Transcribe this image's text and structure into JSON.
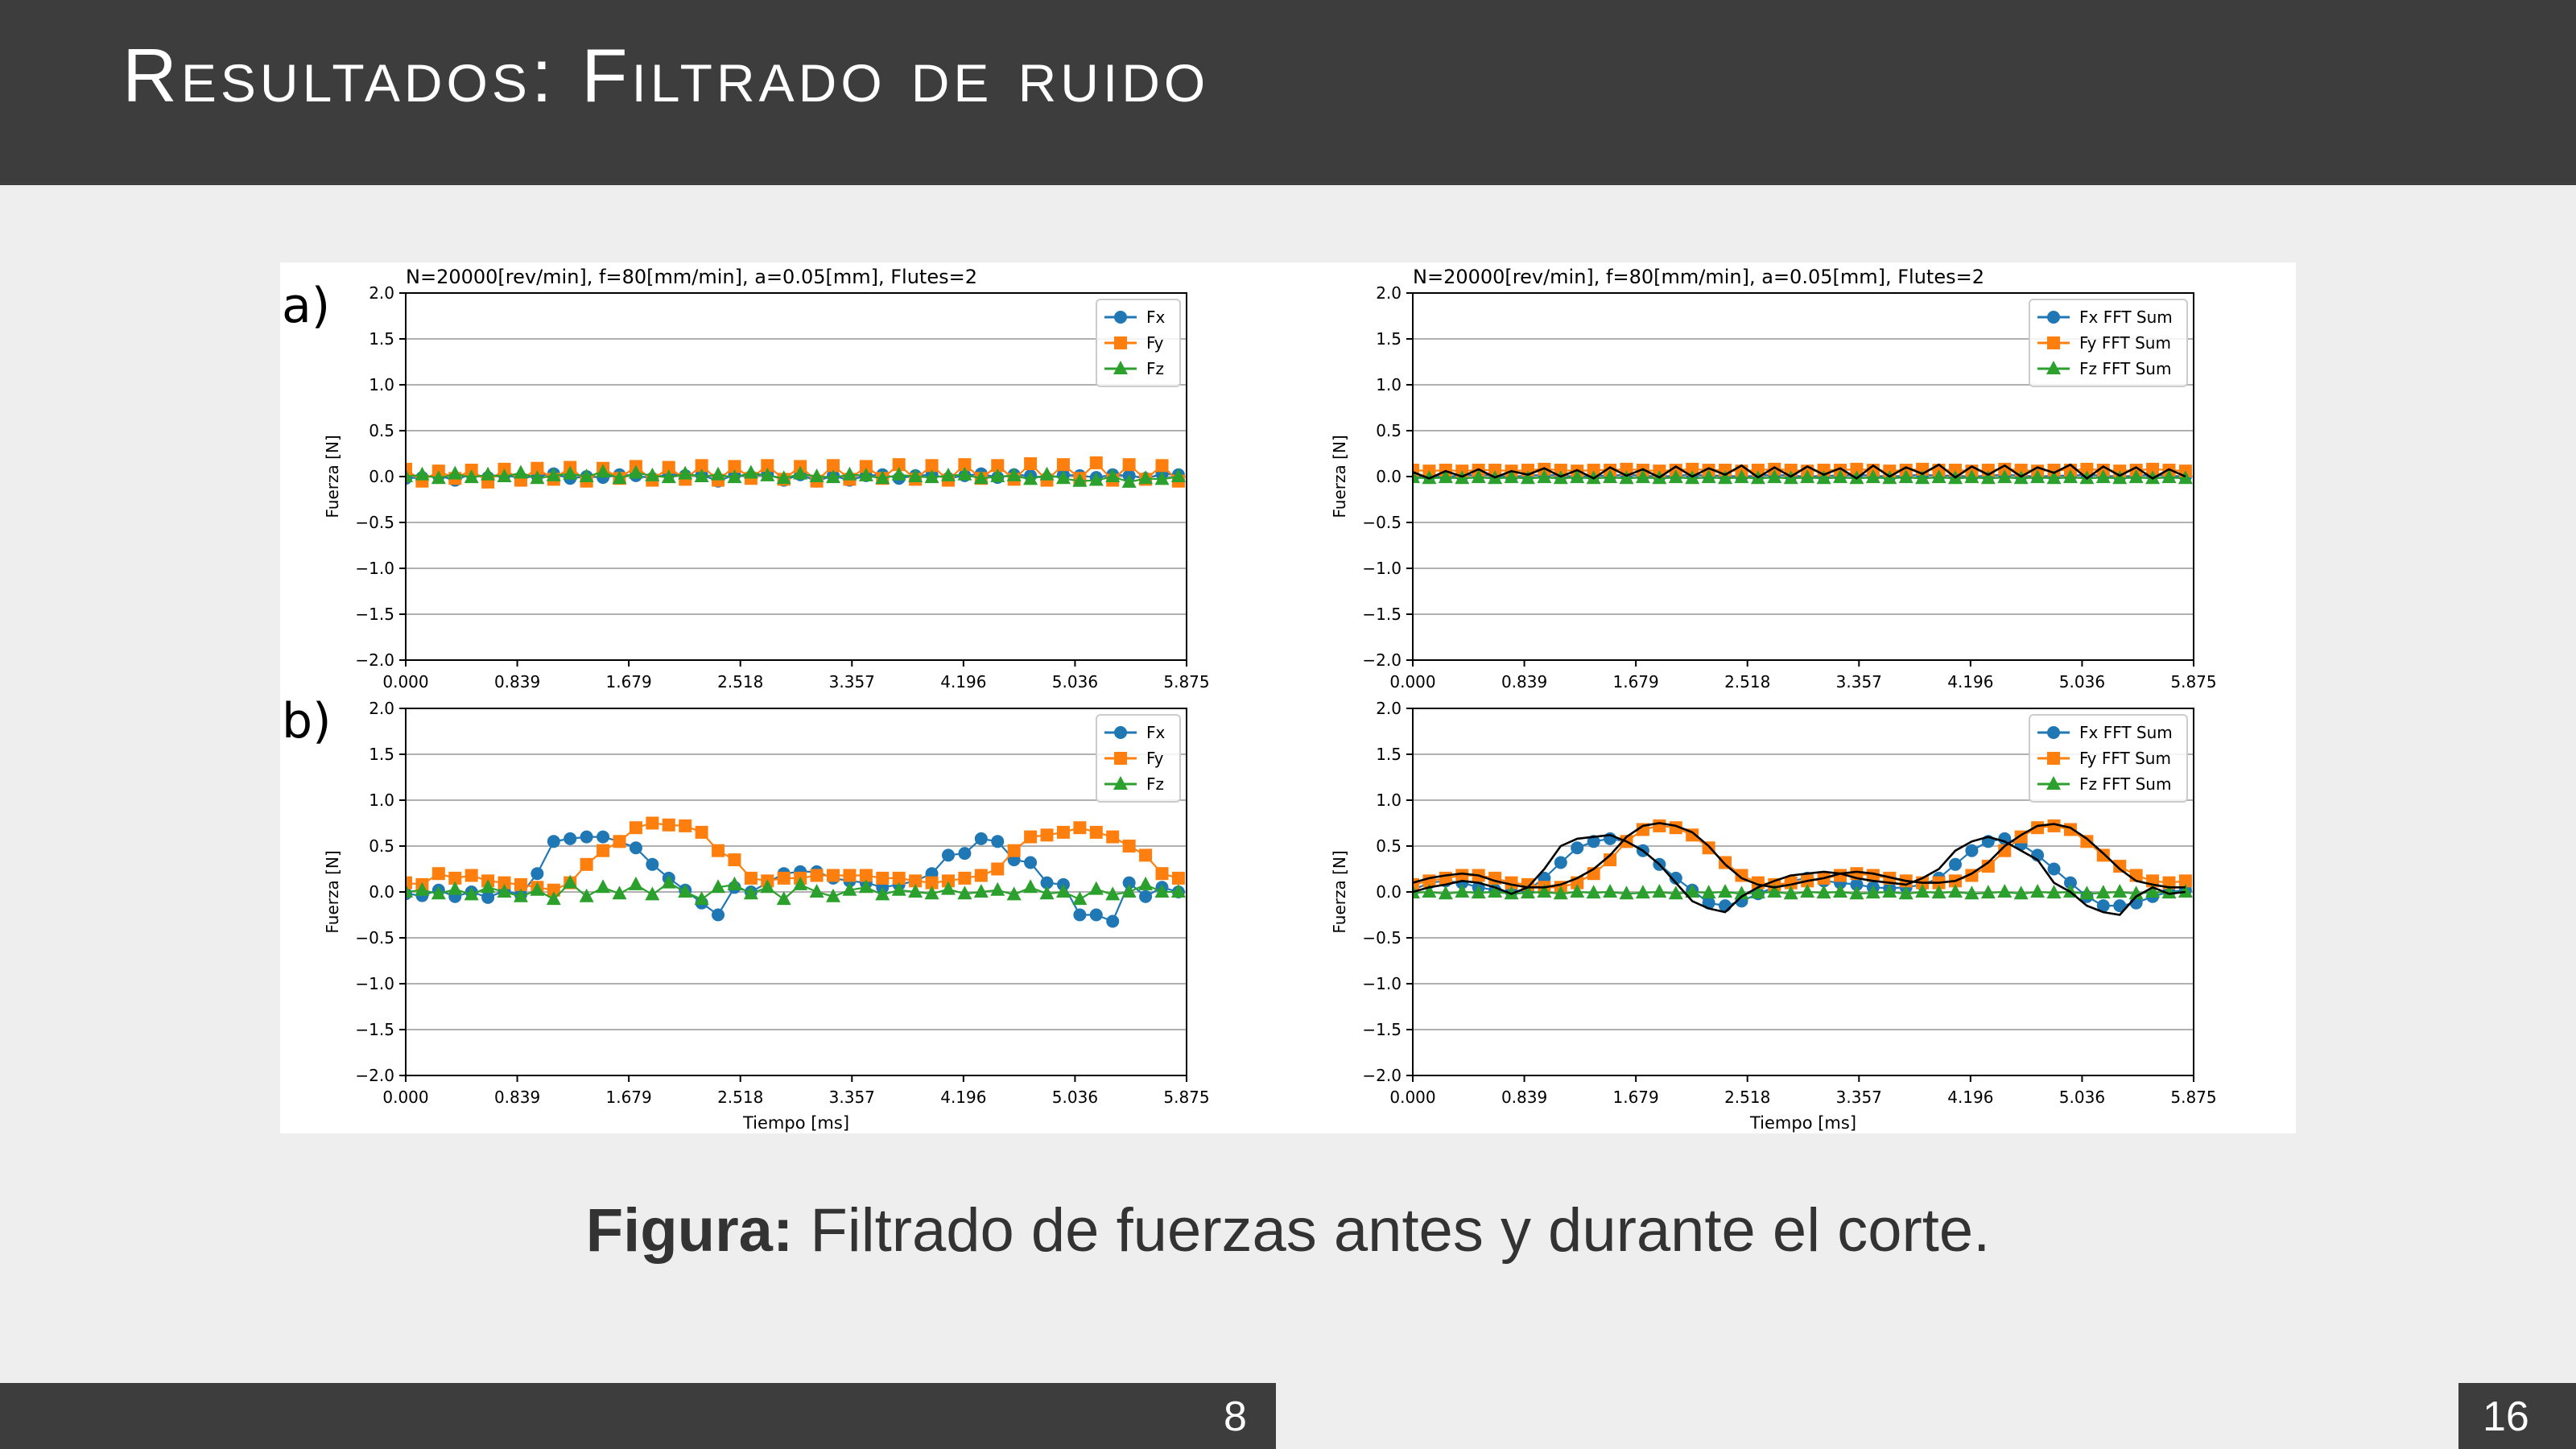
{
  "slide": {
    "title": "Resultados: Filtrado de ruido",
    "caption_bold": "Figura:",
    "caption_text": " Filtrado de fuerzas antes y durante el corte.",
    "page_current": "8",
    "page_total": "16"
  },
  "colors": {
    "header_bg": "#3d3d3d",
    "slide_bg": "#eeeeee",
    "Fx": "#1f77b4",
    "Fy": "#ff7f0e",
    "Fz": "#2ca02c",
    "filtered": "#000000"
  },
  "panel_labels": [
    "a)",
    "b)"
  ],
  "chart_data": [
    {
      "id": "a-left",
      "type": "line",
      "title": "N=20000[rev/min], f=80[mm/min], a=0.05[mm], Flutes=2",
      "xlabel": "",
      "ylabel": "Fuerza [N]",
      "xlim": [
        0,
        5.875
      ],
      "ylim": [
        -2.0,
        2.0
      ],
      "xticks": [
        "0.000",
        "0.839",
        "1.679",
        "2.518",
        "3.357",
        "4.196",
        "5.036",
        "5.875"
      ],
      "yticks": [
        "2.0",
        "1.5",
        "1.0",
        "0.5",
        "0.0",
        "−0.5",
        "−1.0",
        "−1.5",
        "−2.0"
      ],
      "grid": "y",
      "legend": "top-right",
      "x_start": 0,
      "x_step": 0.1237,
      "series": [
        {
          "name": "Fx",
          "marker": "circle",
          "color": "#1f77b4",
          "values": [
            -0.02,
            -0.01,
            0.01,
            -0.04,
            0.03,
            -0.01,
            0.02,
            -0.02,
            0.01,
            0.03,
            -0.02,
            0.0,
            -0.01,
            0.02,
            0.01,
            -0.02,
            0.03,
            0.01,
            0.02,
            -0.05,
            0.02,
            0.0,
            0.03,
            -0.04,
            0.02,
            -0.05,
            0.01,
            -0.04,
            0.01,
            0.02,
            -0.02,
            0.01,
            0.02,
            -0.02,
            0.01,
            0.03,
            -0.01,
            0.02,
            0.01,
            -0.02,
            0.02,
            0.01,
            -0.01,
            0.02,
            0.01,
            -0.02,
            0.03,
            0.02
          ]
        },
        {
          "name": "Fy",
          "marker": "square",
          "color": "#ff7f0e",
          "values": [
            0.08,
            -0.05,
            0.06,
            -0.02,
            0.07,
            -0.06,
            0.08,
            -0.04,
            0.09,
            -0.03,
            0.1,
            -0.05,
            0.09,
            -0.02,
            0.11,
            -0.04,
            0.1,
            -0.03,
            0.12,
            -0.04,
            0.11,
            -0.02,
            0.12,
            -0.03,
            0.11,
            -0.05,
            0.12,
            -0.03,
            0.11,
            -0.02,
            0.13,
            -0.03,
            0.12,
            -0.04,
            0.13,
            -0.02,
            0.12,
            -0.03,
            0.14,
            -0.04,
            0.13,
            -0.02,
            0.15,
            -0.04,
            0.13,
            -0.03,
            0.12,
            -0.05
          ]
        },
        {
          "name": "Fz",
          "marker": "triangle",
          "color": "#2ca02c",
          "values": [
            0.0,
            0.02,
            -0.02,
            0.03,
            -0.01,
            0.02,
            0.0,
            0.04,
            -0.02,
            0.01,
            0.03,
            0.0,
            0.05,
            -0.02,
            0.04,
            0.01,
            -0.01,
            0.03,
            0.0,
            0.02,
            -0.01,
            0.04,
            0.01,
            -0.02,
            0.03,
            0.0,
            -0.01,
            0.02,
            0.01,
            -0.02,
            0.02,
            0.0,
            -0.01,
            0.01,
            0.02,
            -0.02,
            0.0,
            0.01,
            -0.03,
            0.02,
            -0.02,
            -0.05,
            -0.04,
            0.0,
            -0.06,
            -0.02,
            -0.03,
            0.0
          ]
        }
      ]
    },
    {
      "id": "a-right",
      "type": "line",
      "title": "N=20000[rev/min], f=80[mm/min], a=0.05[mm], Flutes=2",
      "xlabel": "",
      "ylabel": "Fuerza [N]",
      "xlim": [
        0,
        5.875
      ],
      "ylim": [
        -2.0,
        2.0
      ],
      "xticks": [
        "0.000",
        "0.839",
        "1.679",
        "2.518",
        "3.357",
        "4.196",
        "5.036",
        "5.875"
      ],
      "yticks": [
        "2.0",
        "1.5",
        "1.0",
        "0.5",
        "0.0",
        "−0.5",
        "−1.0",
        "−1.5",
        "−2.0"
      ],
      "grid": "y",
      "legend": "top-right",
      "x_start": 0,
      "x_step": 0.1237,
      "series": [
        {
          "name": "Fx FFT Sum",
          "marker": "circle",
          "color": "#1f77b4",
          "values": [
            0.0,
            0.01,
            0.0,
            0.01,
            0.02,
            0.01,
            0.0,
            0.01,
            0.02,
            0.01,
            0.0,
            0.01,
            0.01,
            0.02,
            0.01,
            0.0,
            0.01,
            0.02,
            0.01,
            0.01,
            0.0,
            0.01,
            0.02,
            0.01,
            0.0,
            0.01,
            0.01,
            0.02,
            0.01,
            0.0,
            0.01,
            0.02,
            0.01,
            0.01,
            0.0,
            0.01,
            0.02,
            0.01,
            0.0,
            0.01,
            0.01,
            0.02,
            0.01,
            0.0,
            0.01,
            0.02,
            0.01,
            0.0
          ]
        },
        {
          "name": "Fy FFT Sum",
          "marker": "square",
          "color": "#ff7f0e",
          "values": [
            0.07,
            0.06,
            0.07,
            0.06,
            0.07,
            0.07,
            0.06,
            0.07,
            0.08,
            0.07,
            0.06,
            0.07,
            0.07,
            0.08,
            0.07,
            0.06,
            0.07,
            0.08,
            0.07,
            0.07,
            0.06,
            0.07,
            0.08,
            0.07,
            0.06,
            0.07,
            0.07,
            0.08,
            0.07,
            0.06,
            0.07,
            0.08,
            0.07,
            0.07,
            0.06,
            0.07,
            0.08,
            0.07,
            0.06,
            0.07,
            0.07,
            0.08,
            0.07,
            0.06,
            0.07,
            0.08,
            0.07,
            0.06
          ]
        },
        {
          "name": "Fz FFT Sum",
          "marker": "triangle",
          "color": "#2ca02c",
          "values": [
            -0.01,
            -0.02,
            -0.01,
            -0.02,
            -0.01,
            -0.02,
            -0.01,
            -0.02,
            -0.01,
            -0.02,
            -0.01,
            -0.02,
            -0.01,
            -0.02,
            -0.01,
            -0.02,
            -0.01,
            -0.02,
            -0.01,
            -0.02,
            -0.01,
            -0.02,
            -0.01,
            -0.02,
            -0.01,
            -0.02,
            -0.01,
            -0.02,
            -0.01,
            -0.02,
            -0.01,
            -0.02,
            -0.01,
            -0.02,
            -0.01,
            -0.02,
            -0.01,
            -0.02,
            -0.01,
            -0.02,
            -0.01,
            -0.02,
            -0.01,
            -0.02,
            -0.01,
            -0.02,
            -0.01,
            -0.02
          ]
        },
        {
          "name": "",
          "marker": "none",
          "color": "#000000",
          "values": [
            0.05,
            -0.02,
            0.06,
            0.0,
            0.08,
            -0.01,
            0.06,
            0.02,
            0.09,
            0.0,
            0.07,
            -0.02,
            0.1,
            0.01,
            0.08,
            -0.01,
            0.11,
            0.0,
            0.09,
            0.02,
            0.12,
            -0.01,
            0.1,
            0.0,
            0.11,
            0.02,
            0.09,
            -0.02,
            0.12,
            0.0,
            0.1,
            0.03,
            0.13,
            -0.01,
            0.11,
            0.02,
            0.12,
            0.0,
            0.1,
            0.04,
            0.13,
            -0.02,
            0.11,
            0.01,
            0.1,
            -0.02,
            0.08,
            0.0
          ]
        }
      ]
    },
    {
      "id": "b-left",
      "type": "line",
      "title": "",
      "xlabel": "Tiempo [ms]",
      "ylabel": "Fuerza [N]",
      "xlim": [
        0,
        5.875
      ],
      "ylim": [
        -2.0,
        2.0
      ],
      "xticks": [
        "0.000",
        "0.839",
        "1.679",
        "2.518",
        "3.357",
        "4.196",
        "5.036",
        "5.875"
      ],
      "yticks": [
        "2.0",
        "1.5",
        "1.0",
        "0.5",
        "0.0",
        "−0.5",
        "−1.0",
        "−1.5",
        "−2.0"
      ],
      "grid": "y",
      "legend": "top-right",
      "x_start": 0,
      "x_step": 0.1237,
      "series": [
        {
          "name": "Fx",
          "marker": "circle",
          "color": "#1f77b4",
          "values": [
            -0.02,
            -0.04,
            0.02,
            -0.05,
            0.0,
            -0.06,
            0.01,
            -0.03,
            0.2,
            0.55,
            0.58,
            0.6,
            0.6,
            0.55,
            0.48,
            0.3,
            0.15,
            0.02,
            -0.12,
            -0.25,
            0.05,
            0.0,
            0.1,
            0.2,
            0.22,
            0.22,
            0.15,
            0.12,
            0.1,
            0.05,
            0.08,
            0.12,
            0.2,
            0.4,
            0.42,
            0.58,
            0.55,
            0.35,
            0.32,
            0.1,
            0.08,
            -0.25,
            -0.25,
            -0.32,
            0.1,
            -0.05,
            0.05,
            0.0
          ]
        },
        {
          "name": "Fy",
          "marker": "square",
          "color": "#ff7f0e",
          "values": [
            0.1,
            0.08,
            0.2,
            0.15,
            0.18,
            0.12,
            0.1,
            0.08,
            0.05,
            0.02,
            0.1,
            0.3,
            0.45,
            0.55,
            0.7,
            0.75,
            0.73,
            0.72,
            0.65,
            0.45,
            0.35,
            0.15,
            0.12,
            0.15,
            0.15,
            0.18,
            0.18,
            0.18,
            0.18,
            0.15,
            0.15,
            0.12,
            0.1,
            0.12,
            0.15,
            0.18,
            0.25,
            0.45,
            0.6,
            0.62,
            0.65,
            0.7,
            0.65,
            0.6,
            0.5,
            0.4,
            0.2,
            0.15
          ]
        },
        {
          "name": "Fz",
          "marker": "triangle",
          "color": "#2ca02c",
          "values": [
            0.0,
            0.02,
            -0.02,
            0.03,
            -0.03,
            0.05,
            0.0,
            -0.05,
            0.02,
            -0.08,
            0.1,
            -0.05,
            0.05,
            -0.02,
            0.08,
            -0.03,
            0.1,
            0.0,
            -0.08,
            0.05,
            0.08,
            -0.02,
            0.05,
            -0.08,
            0.08,
            0.0,
            -0.05,
            0.02,
            0.05,
            -0.03,
            0.02,
            0.0,
            -0.02,
            0.03,
            -0.02,
            0.0,
            0.02,
            -0.03,
            0.05,
            -0.02,
            0.0,
            -0.08,
            0.03,
            -0.03,
            0.0,
            0.08,
            0.0,
            0.0
          ]
        }
      ]
    },
    {
      "id": "b-right",
      "type": "line",
      "title": "",
      "xlabel": "Tiempo [ms]",
      "ylabel": "Fuerza [N]",
      "xlim": [
        0,
        5.875
      ],
      "ylim": [
        -2.0,
        2.0
      ],
      "xticks": [
        "0.000",
        "0.839",
        "1.679",
        "2.518",
        "3.357",
        "4.196",
        "5.036",
        "5.875"
      ],
      "yticks": [
        "2.0",
        "1.5",
        "1.0",
        "0.5",
        "0.0",
        "−0.5",
        "−1.0",
        "−1.5",
        "−2.0"
      ],
      "grid": "y",
      "legend": "top-right",
      "x_start": 0,
      "x_step": 0.1237,
      "series": [
        {
          "name": "Fx FFT Sum",
          "marker": "circle",
          "color": "#1f77b4",
          "values": [
            0.02,
            0.1,
            0.12,
            0.1,
            0.05,
            0.02,
            0.0,
            0.02,
            0.15,
            0.32,
            0.48,
            0.55,
            0.58,
            0.55,
            0.45,
            0.3,
            0.15,
            0.02,
            -0.12,
            -0.15,
            -0.1,
            -0.02,
            0.05,
            0.12,
            0.15,
            0.12,
            0.1,
            0.08,
            0.05,
            0.04,
            0.05,
            0.08,
            0.15,
            0.3,
            0.45,
            0.55,
            0.58,
            0.52,
            0.4,
            0.25,
            0.1,
            -0.05,
            -0.15,
            -0.15,
            -0.12,
            -0.05,
            0.0,
            0.02
          ]
        },
        {
          "name": "Fy FFT Sum",
          "marker": "square",
          "color": "#ff7f0e",
          "values": [
            0.08,
            0.12,
            0.15,
            0.18,
            0.18,
            0.15,
            0.1,
            0.08,
            0.05,
            0.05,
            0.1,
            0.2,
            0.35,
            0.55,
            0.68,
            0.72,
            0.7,
            0.62,
            0.48,
            0.32,
            0.18,
            0.1,
            0.08,
            0.1,
            0.12,
            0.15,
            0.18,
            0.2,
            0.18,
            0.15,
            0.12,
            0.1,
            0.1,
            0.12,
            0.18,
            0.28,
            0.45,
            0.6,
            0.7,
            0.72,
            0.68,
            0.55,
            0.4,
            0.28,
            0.18,
            0.12,
            0.1,
            0.12
          ]
        },
        {
          "name": "Fz FFT Sum",
          "marker": "triangle",
          "color": "#2ca02c",
          "values": [
            -0.01,
            0.0,
            -0.02,
            0.0,
            -0.01,
            0.0,
            -0.02,
            -0.01,
            0.0,
            -0.02,
            0.0,
            -0.01,
            0.0,
            -0.02,
            -0.01,
            0.0,
            -0.02,
            0.0,
            -0.01,
            0.0,
            -0.02,
            -0.01,
            0.0,
            -0.02,
            0.0,
            -0.01,
            0.0,
            -0.02,
            -0.01,
            0.0,
            -0.02,
            0.0,
            -0.01,
            0.0,
            -0.02,
            -0.01,
            0.0,
            -0.02,
            0.0,
            -0.01,
            0.0,
            -0.02,
            -0.01,
            0.0,
            -0.02,
            0.0,
            -0.01,
            0.0
          ]
        },
        {
          "name": "",
          "marker": "none",
          "color": "#000000",
          "values": [
            0.0,
            0.05,
            0.08,
            0.12,
            0.1,
            0.05,
            -0.02,
            0.05,
            0.25,
            0.5,
            0.58,
            0.6,
            0.62,
            0.55,
            0.45,
            0.3,
            0.1,
            -0.1,
            -0.18,
            -0.22,
            -0.05,
            0.05,
            0.12,
            0.18,
            0.2,
            0.22,
            0.2,
            0.15,
            0.12,
            0.1,
            0.08,
            0.15,
            0.25,
            0.45,
            0.55,
            0.6,
            0.55,
            0.45,
            0.35,
            0.1,
            0.0,
            -0.15,
            -0.22,
            -0.25,
            -0.05,
            0.05,
            -0.02,
            0.0
          ]
        },
        {
          "name": "",
          "marker": "none",
          "color": "#000000",
          "values": [
            0.1,
            0.15,
            0.18,
            0.2,
            0.18,
            0.12,
            0.08,
            0.05,
            0.05,
            0.08,
            0.15,
            0.25,
            0.4,
            0.6,
            0.72,
            0.75,
            0.72,
            0.65,
            0.5,
            0.3,
            0.15,
            0.08,
            0.05,
            0.08,
            0.12,
            0.15,
            0.2,
            0.22,
            0.2,
            0.16,
            0.12,
            0.1,
            0.1,
            0.12,
            0.2,
            0.32,
            0.5,
            0.62,
            0.72,
            0.74,
            0.7,
            0.58,
            0.42,
            0.25,
            0.12,
            0.08,
            0.05,
            0.05
          ]
        }
      ]
    }
  ]
}
